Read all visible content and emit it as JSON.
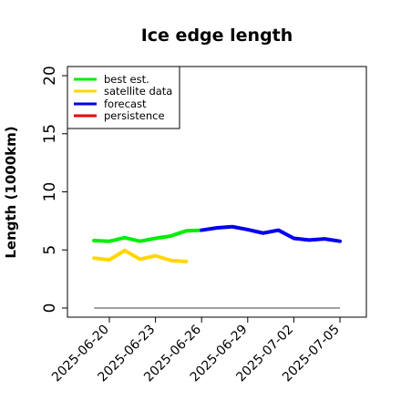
{
  "chart_data": {
    "type": "line",
    "title": "Ice edge length",
    "ylabel": "Length (1000km)",
    "xlabel": "",
    "ylim": [
      0,
      20
    ],
    "xlim": [
      "2025-06-18",
      "2025-07-06"
    ],
    "grid": false,
    "legend_placement": "top-left",
    "yticks": [
      "0",
      "5",
      "10",
      "15",
      "20"
    ],
    "xticks": [
      {
        "date": "2025-06-20",
        "label": "2025-06-20",
        "color": "#000000"
      },
      {
        "date": "2025-06-23",
        "label": "2025-06-23",
        "color": "#000000"
      },
      {
        "date": "2025-06-26",
        "label": "2025-06-26",
        "color": "#228B22"
      },
      {
        "date": "2025-06-29",
        "label": "2025-06-29",
        "color": "#000000"
      },
      {
        "date": "2025-07-02",
        "label": "2025-07-02",
        "color": "#000000"
      },
      {
        "date": "2025-07-05",
        "label": "2025-07-05",
        "color": "#000000"
      }
    ],
    "series": [
      {
        "name": "best est.",
        "color": "#00ee00",
        "points": [
          {
            "x": "2025-06-19",
            "y": 5.8
          },
          {
            "x": "2025-06-20",
            "y": 5.75
          },
          {
            "x": "2025-06-21",
            "y": 6.05
          },
          {
            "x": "2025-06-22",
            "y": 5.75
          },
          {
            "x": "2025-06-23",
            "y": 6.0
          },
          {
            "x": "2025-06-24",
            "y": 6.2
          },
          {
            "x": "2025-06-25",
            "y": 6.65
          },
          {
            "x": "2025-06-26",
            "y": 6.7
          }
        ]
      },
      {
        "name": "satellite data",
        "color": "#ffd700",
        "points": [
          {
            "x": "2025-06-19",
            "y": 4.3
          },
          {
            "x": "2025-06-20",
            "y": 4.15
          },
          {
            "x": "2025-06-21",
            "y": 4.95
          },
          {
            "x": "2025-06-22",
            "y": 4.2
          },
          {
            "x": "2025-06-23",
            "y": 4.5
          },
          {
            "x": "2025-06-24",
            "y": 4.1
          },
          {
            "x": "2025-06-25",
            "y": 4.0
          }
        ]
      },
      {
        "name": "forecast",
        "color": "#0000ee",
        "points": [
          {
            "x": "2025-06-26",
            "y": 6.7
          },
          {
            "x": "2025-06-27",
            "y": 6.9
          },
          {
            "x": "2025-06-28",
            "y": 7.0
          },
          {
            "x": "2025-06-29",
            "y": 6.75
          },
          {
            "x": "2025-06-30",
            "y": 6.45
          },
          {
            "x": "2025-07-01",
            "y": 6.7
          },
          {
            "x": "2025-07-02",
            "y": 6.0
          },
          {
            "x": "2025-07-03",
            "y": 5.85
          },
          {
            "x": "2025-07-04",
            "y": 5.95
          },
          {
            "x": "2025-07-05",
            "y": 5.75
          }
        ]
      },
      {
        "name": "persistence",
        "color": "#ee0000",
        "points": []
      }
    ],
    "reference_lines": [
      {
        "color": "#808080",
        "points": [
          {
            "x": "2025-06-19",
            "y": 0
          },
          {
            "x": "2025-07-05",
            "y": 0
          }
        ]
      }
    ]
  }
}
